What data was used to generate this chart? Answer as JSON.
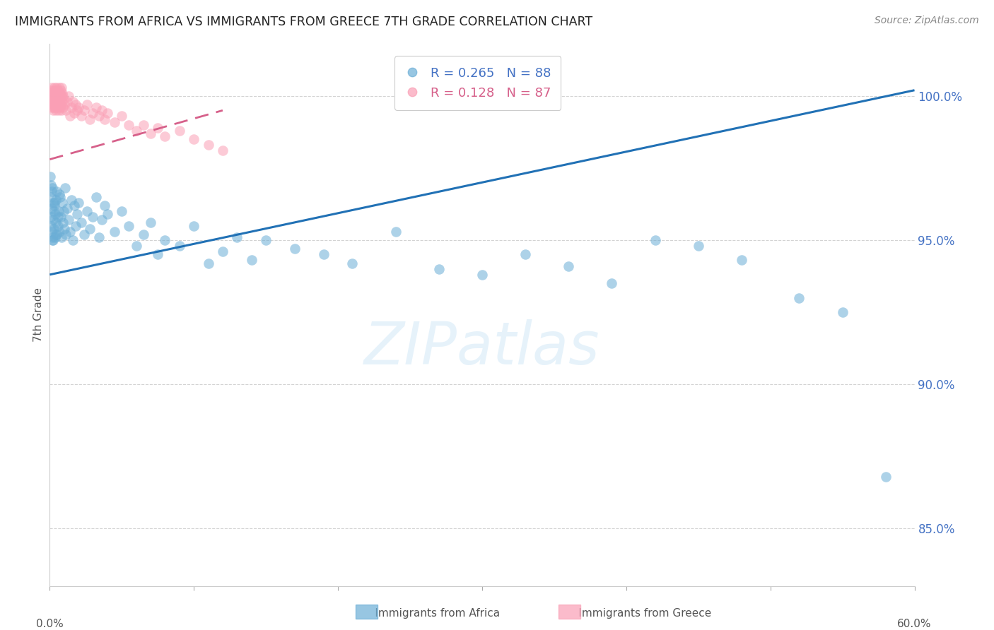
{
  "title": "IMMIGRANTS FROM AFRICA VS IMMIGRANTS FROM GREECE 7TH GRADE CORRELATION CHART",
  "source": "Source: ZipAtlas.com",
  "ylabel": "7th Grade",
  "yticks": [
    85.0,
    90.0,
    95.0,
    100.0
  ],
  "ytick_labels": [
    "85.0%",
    "90.0%",
    "95.0%",
    "100.0%"
  ],
  "xlim": [
    0.0,
    60.0
  ],
  "ylim": [
    83.0,
    101.8
  ],
  "africa_color": "#6baed6",
  "greece_color": "#fa9fb5",
  "africa_line_color": "#2171b5",
  "greece_line_color": "#d6608a",
  "watermark_text": "ZIPatlas",
  "legend_R_africa": "0.265",
  "legend_N_africa": "88",
  "legend_R_greece": "0.128",
  "legend_N_greece": "87",
  "africa_line_y0": 93.8,
  "africa_line_y1": 100.2,
  "greece_line_y0": 97.8,
  "greece_line_y1": 99.5,
  "africa_x": [
    0.05,
    0.08,
    0.1,
    0.12,
    0.15,
    0.18,
    0.2,
    0.22,
    0.25,
    0.28,
    0.3,
    0.35,
    0.38,
    0.4,
    0.42,
    0.45,
    0.48,
    0.5,
    0.55,
    0.6,
    0.65,
    0.7,
    0.75,
    0.8,
    0.85,
    0.9,
    0.95,
    1.0,
    1.05,
    1.1,
    1.2,
    1.3,
    1.4,
    1.5,
    1.6,
    1.7,
    1.8,
    1.9,
    2.0,
    2.2,
    2.4,
    2.6,
    2.8,
    3.0,
    3.2,
    3.4,
    3.6,
    3.8,
    4.0,
    4.5,
    5.0,
    5.5,
    6.0,
    6.5,
    7.0,
    7.5,
    8.0,
    9.0,
    10.0,
    11.0,
    12.0,
    13.0,
    14.0,
    15.0,
    17.0,
    19.0,
    21.0,
    24.0,
    27.0,
    30.0,
    33.0,
    36.0,
    39.0,
    42.0,
    45.0,
    48.0,
    52.0,
    55.0,
    58.0,
    0.06,
    0.09,
    0.14,
    0.16,
    0.24,
    0.32,
    0.44,
    0.56,
    0.68
  ],
  "africa_y": [
    97.2,
    96.5,
    95.8,
    96.1,
    95.3,
    96.8,
    95.0,
    96.3,
    95.7,
    96.0,
    95.4,
    96.2,
    95.9,
    95.1,
    96.4,
    95.6,
    95.2,
    96.7,
    95.5,
    96.0,
    95.3,
    96.5,
    95.8,
    95.1,
    96.3,
    95.6,
    96.0,
    95.4,
    96.8,
    95.2,
    96.1,
    95.7,
    95.3,
    96.4,
    95.0,
    96.2,
    95.5,
    95.9,
    96.3,
    95.6,
    95.2,
    96.0,
    95.4,
    95.8,
    96.5,
    95.1,
    95.7,
    96.2,
    95.9,
    95.3,
    96.0,
    95.5,
    94.8,
    95.2,
    95.6,
    94.5,
    95.0,
    94.8,
    95.5,
    94.2,
    94.6,
    95.1,
    94.3,
    95.0,
    94.7,
    94.5,
    94.2,
    95.3,
    94.0,
    93.8,
    94.5,
    94.1,
    93.5,
    95.0,
    94.8,
    94.3,
    93.0,
    92.5,
    86.8,
    96.9,
    95.5,
    96.7,
    95.1,
    95.0,
    96.3,
    95.2,
    95.8,
    96.6
  ],
  "greece_x": [
    0.04,
    0.06,
    0.08,
    0.1,
    0.12,
    0.14,
    0.16,
    0.18,
    0.2,
    0.22,
    0.24,
    0.26,
    0.28,
    0.3,
    0.32,
    0.34,
    0.36,
    0.38,
    0.4,
    0.42,
    0.44,
    0.46,
    0.48,
    0.5,
    0.52,
    0.54,
    0.56,
    0.58,
    0.6,
    0.62,
    0.64,
    0.66,
    0.68,
    0.7,
    0.72,
    0.74,
    0.76,
    0.78,
    0.8,
    0.82,
    0.84,
    0.86,
    0.88,
    0.9,
    0.92,
    0.95,
    1.0,
    1.1,
    1.2,
    1.3,
    1.4,
    1.5,
    1.6,
    1.7,
    1.8,
    1.9,
    2.0,
    2.2,
    2.4,
    2.6,
    2.8,
    3.0,
    3.2,
    3.4,
    3.6,
    3.8,
    4.0,
    4.5,
    5.0,
    5.5,
    6.0,
    6.5,
    7.0,
    7.5,
    8.0,
    9.0,
    10.0,
    11.0,
    12.0,
    0.05,
    0.09,
    0.13,
    0.17,
    0.21,
    0.25,
    0.29,
    0.33
  ],
  "greece_y": [
    100.0,
    100.2,
    99.8,
    100.1,
    99.6,
    100.3,
    99.9,
    100.0,
    99.7,
    100.1,
    99.5,
    100.2,
    99.8,
    100.0,
    99.6,
    100.3,
    99.9,
    100.1,
    99.7,
    100.2,
    99.5,
    100.0,
    99.8,
    100.3,
    99.6,
    100.1,
    99.9,
    100.2,
    99.7,
    100.0,
    99.5,
    100.3,
    99.8,
    100.1,
    99.6,
    99.9,
    100.2,
    99.7,
    100.0,
    99.5,
    100.3,
    99.8,
    100.1,
    99.6,
    100.0,
    99.9,
    99.7,
    99.5,
    99.8,
    100.0,
    99.3,
    99.6,
    99.8,
    99.4,
    99.7,
    99.5,
    99.6,
    99.3,
    99.5,
    99.7,
    99.2,
    99.4,
    99.6,
    99.3,
    99.5,
    99.2,
    99.4,
    99.1,
    99.3,
    99.0,
    98.8,
    99.0,
    98.7,
    98.9,
    98.6,
    98.8,
    98.5,
    98.3,
    98.1,
    99.9,
    100.1,
    99.8,
    100.0,
    99.7,
    99.9,
    99.6,
    99.8
  ]
}
